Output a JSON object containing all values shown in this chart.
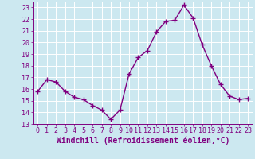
{
  "x": [
    0,
    1,
    2,
    3,
    4,
    5,
    6,
    7,
    8,
    9,
    10,
    11,
    12,
    13,
    14,
    15,
    16,
    17,
    18,
    19,
    20,
    21,
    22,
    23
  ],
  "y": [
    15.8,
    16.8,
    16.6,
    15.8,
    15.3,
    15.1,
    14.6,
    14.2,
    13.4,
    14.2,
    17.3,
    18.7,
    19.3,
    20.9,
    21.8,
    21.9,
    23.2,
    22.1,
    19.8,
    18.0,
    16.4,
    15.4,
    15.1,
    15.2
  ],
  "line_color": "#800080",
  "marker": "+",
  "marker_size": 4,
  "linewidth": 1.0,
  "xlabel": "Windchill (Refroidissement éolien,°C)",
  "xlim": [
    -0.5,
    23.5
  ],
  "ylim": [
    13,
    23.5
  ],
  "yticks": [
    13,
    14,
    15,
    16,
    17,
    18,
    19,
    20,
    21,
    22,
    23
  ],
  "xticks": [
    0,
    1,
    2,
    3,
    4,
    5,
    6,
    7,
    8,
    9,
    10,
    11,
    12,
    13,
    14,
    15,
    16,
    17,
    18,
    19,
    20,
    21,
    22,
    23
  ],
  "bg_color": "#cce8f0",
  "grid_color": "#ffffff",
  "label_color": "#800080",
  "xlabel_fontsize": 7,
  "tick_fontsize": 6,
  "markeredgewidth": 1.0
}
